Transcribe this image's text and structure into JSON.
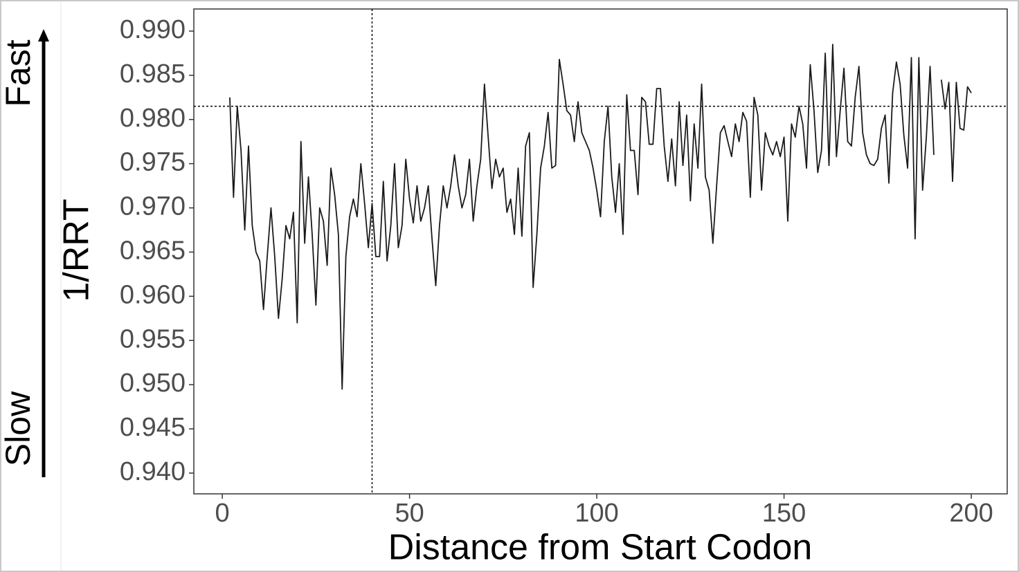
{
  "chart_data": {
    "type": "line",
    "xlabel": "Distance from Start Codon",
    "ylabel": "1/RRT",
    "annotations": {
      "top": "Fast",
      "bottom": "Slow"
    },
    "color": "#1a1a1a",
    "xlim": [
      -7.6,
      209.6
    ],
    "ylim": [
      0.93765,
      0.9925
    ],
    "xticks": [
      0,
      50,
      100,
      150,
      200
    ],
    "yticks": [
      {
        "value": 0.94,
        "label": "0.940"
      },
      0.945,
      {
        "value": 0.95,
        "label": "0.950"
      },
      0.955,
      {
        "value": 0.96,
        "label": "0.960"
      },
      0.965,
      {
        "value": 0.97,
        "label": "0.970"
      },
      0.975,
      {
        "value": 0.98,
        "label": "0.980"
      },
      0.985,
      {
        "value": 0.99,
        "label": "0.990"
      }
    ],
    "reference_lines": {
      "y": 0.9815,
      "x": 40
    },
    "x": [
      2,
      3,
      4,
      5,
      6,
      7,
      8,
      9,
      10,
      11,
      12,
      13,
      14,
      15,
      16,
      17,
      18,
      19,
      20,
      21,
      22,
      23,
      24,
      25,
      26,
      27,
      28,
      29,
      30,
      31,
      32,
      33,
      34,
      35,
      36,
      37,
      38,
      39,
      40,
      41,
      42,
      43,
      44,
      45,
      46,
      47,
      48,
      49,
      50,
      51,
      52,
      53,
      54,
      55,
      56,
      57,
      58,
      59,
      60,
      61,
      62,
      63,
      64,
      65,
      66,
      67,
      68,
      69,
      70,
      71,
      72,
      73,
      74,
      75,
      76,
      77,
      78,
      79,
      80,
      81,
      82,
      83,
      84,
      85,
      86,
      87,
      88,
      89,
      90,
      91,
      92,
      93,
      94,
      95,
      96,
      97,
      98,
      99,
      100,
      101,
      102,
      103,
      104,
      105,
      106,
      107,
      108,
      109,
      110,
      111,
      112,
      113,
      114,
      115,
      116,
      117,
      118,
      119,
      120,
      121,
      122,
      123,
      124,
      125,
      126,
      127,
      128,
      129,
      130,
      131,
      132,
      133,
      134,
      135,
      136,
      137,
      138,
      139,
      140,
      141,
      142,
      143,
      144,
      145,
      146,
      147,
      148,
      149,
      150,
      151,
      152,
      153,
      154,
      155,
      156,
      157,
      158,
      159,
      160,
      161,
      162,
      163,
      164,
      165,
      166,
      167,
      168,
      169,
      170,
      171,
      172,
      173,
      174,
      175,
      176,
      177,
      178,
      179,
      180,
      181,
      182,
      183,
      184,
      185,
      186,
      187,
      188,
      189,
      190,
      191,
      192,
      193,
      194,
      195,
      196,
      197,
      198,
      199,
      200
    ],
    "values": [
      0.9825,
      0.9712,
      0.9815,
      0.9765,
      0.9675,
      0.977,
      0.968,
      0.965,
      0.964,
      0.9585,
      0.9645,
      0.97,
      0.9645,
      0.9575,
      0.962,
      0.968,
      0.9665,
      0.9695,
      0.957,
      0.9775,
      0.966,
      0.9735,
      0.967,
      0.959,
      0.97,
      0.9685,
      0.9635,
      0.9745,
      0.9715,
      0.967,
      0.9495,
      0.9645,
      0.969,
      0.971,
      0.969,
      0.975,
      0.9705,
      0.9655,
      0.9705,
      0.9645,
      0.9645,
      0.973,
      0.964,
      0.968,
      0.975,
      0.9655,
      0.968,
      0.9755,
      0.971,
      0.9683,
      0.9725,
      0.9685,
      0.97,
      0.9725,
      0.9665,
      0.9612,
      0.968,
      0.9725,
      0.97,
      0.9725,
      0.976,
      0.9725,
      0.97,
      0.9715,
      0.9755,
      0.9685,
      0.9725,
      0.9755,
      0.984,
      0.978,
      0.9722,
      0.9755,
      0.9735,
      0.9745,
      0.9695,
      0.971,
      0.967,
      0.9745,
      0.9668,
      0.977,
      0.9785,
      0.961,
      0.967,
      0.9745,
      0.977,
      0.9808,
      0.9745,
      0.9748,
      0.9868,
      0.984,
      0.981,
      0.9805,
      0.9775,
      0.982,
      0.9785,
      0.9775,
      0.9765,
      0.9745,
      0.972,
      0.969,
      0.9775,
      0.9815,
      0.9735,
      0.9695,
      0.975,
      0.967,
      0.9828,
      0.9765,
      0.9765,
      0.9715,
      0.9825,
      0.982,
      0.9772,
      0.9772,
      0.9835,
      0.9835,
      0.977,
      0.973,
      0.9778,
      0.9725,
      0.982,
      0.9748,
      0.9805,
      0.9708,
      0.9795,
      0.9745,
      0.984,
      0.9735,
      0.972,
      0.966,
      0.9725,
      0.9785,
      0.9793,
      0.9775,
      0.9758,
      0.9795,
      0.9775,
      0.9808,
      0.9798,
      0.9712,
      0.9825,
      0.9805,
      0.972,
      0.9785,
      0.977,
      0.976,
      0.9775,
      0.9758,
      0.978,
      0.9685,
      0.9795,
      0.978,
      0.9815,
      0.9795,
      0.9745,
      0.9862,
      0.981,
      0.974,
      0.9765,
      0.9875,
      0.9748,
      0.9885,
      0.9758,
      0.981,
      0.9858,
      0.9775,
      0.977,
      0.9825,
      0.986,
      0.9785,
      0.976,
      0.975,
      0.9748,
      0.9755,
      0.979,
      0.9805,
      0.9728,
      0.983,
      0.9865,
      0.984,
      0.9782,
      0.9745,
      0.987,
      0.9665,
      0.987,
      0.972,
      0.978,
      0.986,
      0.976,
      null,
      0.9845,
      0.9812,
      0.9842,
      0.973,
      0.9842,
      0.979,
      0.9788,
      0.9837,
      0.983
    ]
  }
}
